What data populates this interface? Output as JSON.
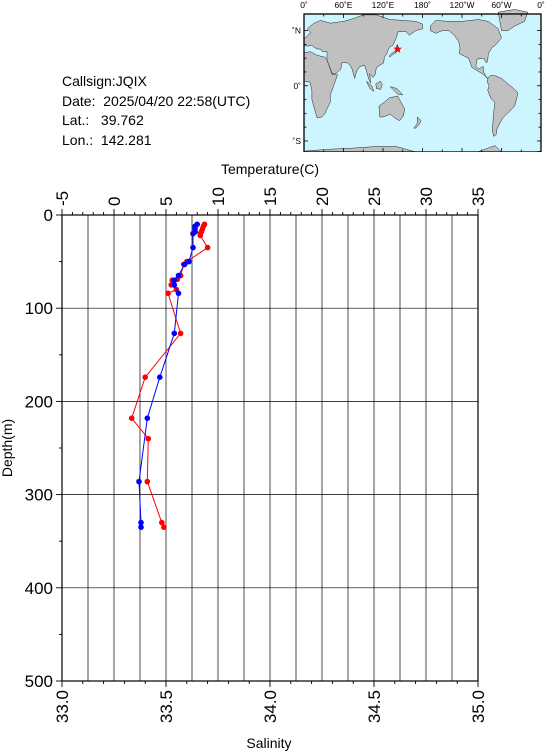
{
  "info": {
    "callsign": "Callsign:JQIX",
    "date": "Date:  2025/04/20 22:58(UTC)",
    "lat": "Lat.:   39.762",
    "lon": "Lon.:  142.281"
  },
  "map": {
    "top_labels": [
      "0˚",
      "60˚E",
      "120˚E",
      "180˚",
      "120˚W",
      "60˚W",
      "0˚"
    ],
    "lat_labels": [
      "60˚N",
      "0˚",
      "60˚S"
    ],
    "ocean_color": "#ccf5ff",
    "land_color": "#c0c0c0",
    "marker_color": "#ff0000",
    "station": {
      "lon": 142.281,
      "lat": 39.762
    }
  },
  "chart_data": {
    "type": "scatter",
    "title": "",
    "x_top": {
      "label": "Temperature(C)",
      "range": [
        -5,
        35
      ],
      "ticks": [
        "-5",
        "0",
        "5",
        "10",
        "15",
        "20",
        "25",
        "30",
        "35"
      ]
    },
    "x_bottom": {
      "label": "Salinity",
      "range": [
        33.0,
        35.0
      ],
      "ticks": [
        "33.0",
        "33.5",
        "34.0",
        "34.5",
        "35.0"
      ]
    },
    "y": {
      "label": "Depth(m)",
      "range": [
        0,
        500
      ],
      "inverted": true,
      "ticks": [
        "0",
        "100",
        "200",
        "300",
        "400",
        "500"
      ]
    },
    "grid": true,
    "series": [
      {
        "color": "#ff0000",
        "axis": "temperature",
        "points": [
          [
            8.7,
            10
          ],
          [
            8.6,
            12
          ],
          [
            8.5,
            15
          ],
          [
            8.4,
            18
          ],
          [
            8.3,
            20
          ],
          [
            8.3,
            22
          ],
          [
            9.0,
            35
          ],
          [
            7.0,
            50
          ],
          [
            6.7,
            53
          ],
          [
            6.4,
            65
          ],
          [
            6.1,
            69
          ],
          [
            5.6,
            70
          ],
          [
            5.5,
            75
          ],
          [
            6.0,
            80
          ],
          [
            5.2,
            84
          ],
          [
            6.4,
            127
          ],
          [
            3.0,
            174
          ],
          [
            1.7,
            218
          ],
          [
            3.3,
            240
          ],
          [
            3.2,
            286
          ],
          [
            4.6,
            330
          ],
          [
            4.8,
            335
          ]
        ]
      },
      {
        "color": "#0000ff",
        "axis": "salinity",
        "points": [
          [
            33.65,
            10
          ],
          [
            33.64,
            12
          ],
          [
            33.64,
            15
          ],
          [
            33.64,
            18
          ],
          [
            33.63,
            20
          ],
          [
            33.63,
            35
          ],
          [
            33.61,
            50
          ],
          [
            33.59,
            53
          ],
          [
            33.56,
            65
          ],
          [
            33.54,
            70
          ],
          [
            33.54,
            75
          ],
          [
            33.56,
            84
          ],
          [
            33.54,
            127
          ],
          [
            33.47,
            174
          ],
          [
            33.41,
            218
          ],
          [
            33.37,
            286
          ],
          [
            33.38,
            330
          ],
          [
            33.38,
            335
          ]
        ]
      }
    ]
  }
}
